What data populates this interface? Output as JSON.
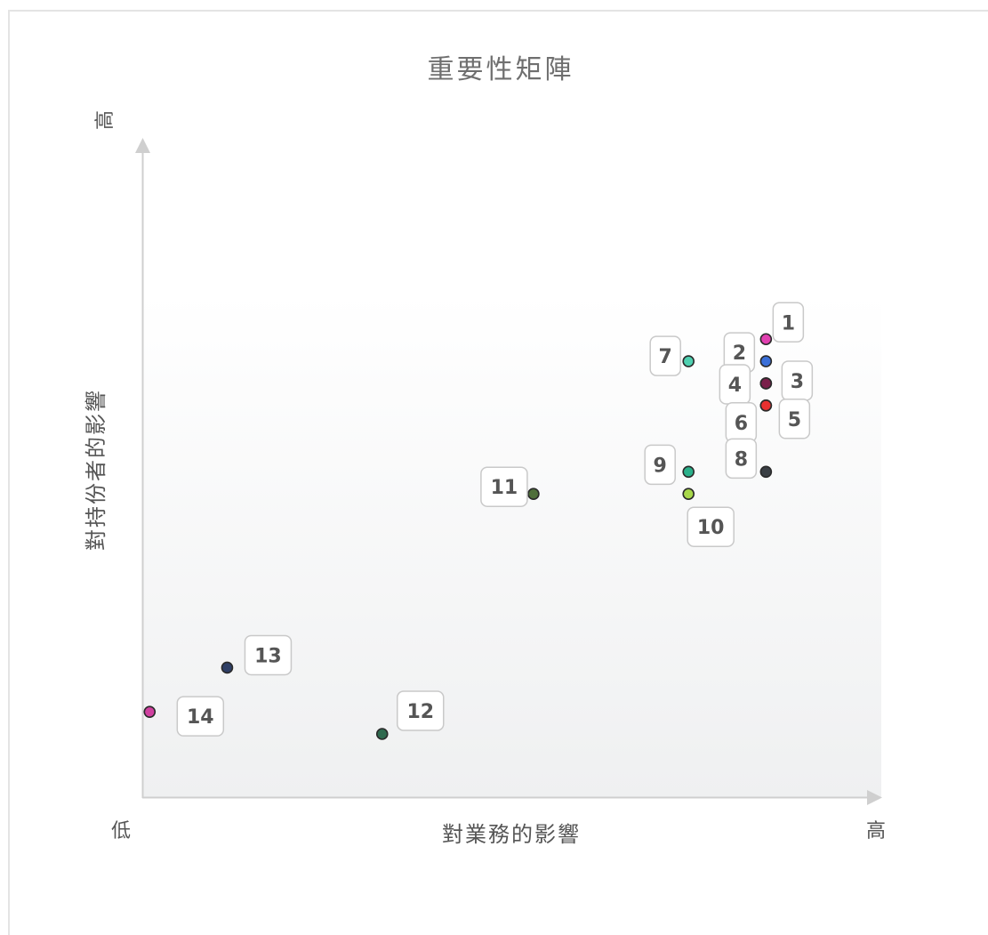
{
  "chart_data": {
    "type": "scatter",
    "title": "重要性矩陣",
    "xlabel": "對業務的影響",
    "ylabel": "對持份者的影響",
    "x_low_label": "低",
    "x_high_label": "高",
    "y_high_label": "高",
    "xlim": [
      0,
      10
    ],
    "ylim": [
      0,
      10
    ],
    "grid": false,
    "points": [
      {
        "label": "1",
        "x": 8.45,
        "y": 7.25,
        "color": "#e040b0"
      },
      {
        "label": "2",
        "x": 8.45,
        "y": 6.9,
        "color": "#3a6fd8"
      },
      {
        "label": "3",
        "x": 8.45,
        "y": 6.55,
        "color": "#7a1f4a"
      },
      {
        "label": "4",
        "x": 8.45,
        "y": 6.55,
        "color": "#7a1f4a"
      },
      {
        "label": "5",
        "x": 8.45,
        "y": 6.2,
        "color": "#e83030"
      },
      {
        "label": "6",
        "x": 8.45,
        "y": 6.2,
        "color": "#e83030"
      },
      {
        "label": "7",
        "x": 7.4,
        "y": 6.9,
        "color": "#4fd0b0"
      },
      {
        "label": "8",
        "x": 8.45,
        "y": 5.15,
        "color": "#3a3f44"
      },
      {
        "label": "9",
        "x": 7.4,
        "y": 5.15,
        "color": "#2ab08a"
      },
      {
        "label": "10",
        "x": 7.4,
        "y": 4.8,
        "color": "#a8d84a"
      },
      {
        "label": "11",
        "x": 5.3,
        "y": 4.8,
        "color": "#4f6f3a"
      },
      {
        "label": "12",
        "x": 3.25,
        "y": 1.0,
        "color": "#2f6a4f"
      },
      {
        "label": "13",
        "x": 1.15,
        "y": 2.05,
        "color": "#2e3f66"
      },
      {
        "label": "14",
        "x": 0.1,
        "y": 1.35,
        "color": "#d040a0"
      }
    ]
  }
}
